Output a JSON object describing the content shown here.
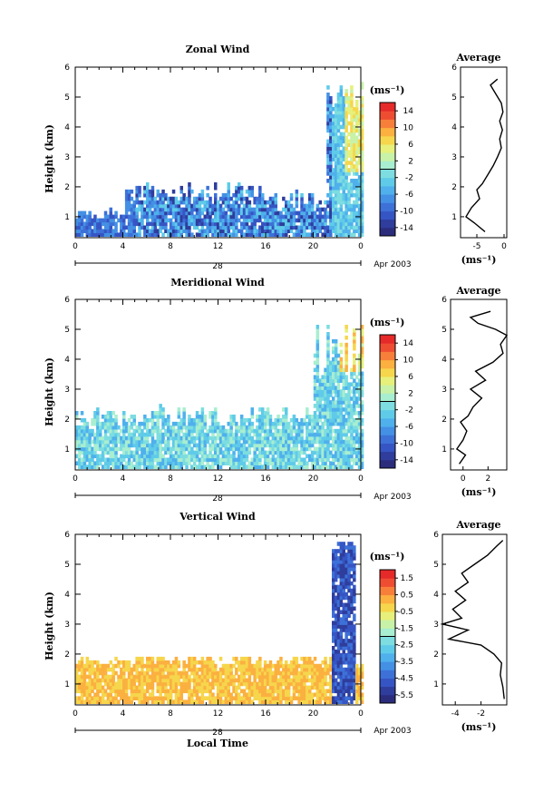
{
  "figure": {
    "date_label": "Apr 2003",
    "day_label": "28",
    "bottom_xlabel": "Local Time",
    "ylabel": "Height (km)",
    "unit_label": "(ms⁻¹)",
    "avg_title": "Average",
    "avg_xunit": "(ms⁻¹)"
  },
  "colors": {
    "scale": [
      "#2b2d7c",
      "#2f3d9c",
      "#3655c4",
      "#3d71d8",
      "#4490e4",
      "#4fb0ec",
      "#5fcbe9",
      "#7ddde0",
      "#a8eed0",
      "#c8f2a8",
      "#e6f07a",
      "#f6d64c",
      "#fbb040",
      "#f77f3a",
      "#ef4d32",
      "#e62a2a"
    ],
    "line": "#000000",
    "axis": "#000000"
  },
  "chart_data": [
    {
      "type": "heatmap",
      "title": "Zonal Wind",
      "xlabel": "",
      "ylabel": "Height (km)",
      "xlim": [
        0,
        24
      ],
      "ylim": [
        0.3,
        6
      ],
      "xticks": [
        "0",
        "4",
        "8",
        "12",
        "16",
        "20",
        "0"
      ],
      "yticks": [
        "1",
        "2",
        "3",
        "4",
        "5",
        "6"
      ],
      "colorbar": {
        "unit": "(ms⁻¹)",
        "ticks": [
          "14",
          "10",
          "6",
          "2",
          "-2",
          "-6",
          "-10",
          "-14"
        ],
        "range": [
          -16,
          16
        ]
      },
      "average_profile": {
        "title": "Average",
        "xunit": "(ms⁻¹)",
        "xlim": [
          -8,
          0.5
        ],
        "xticks": [
          "-5",
          "0"
        ],
        "heights": [
          0.5,
          0.8,
          1.0,
          1.3,
          1.6,
          1.9,
          2.1,
          2.4,
          2.7,
          3.0,
          3.3,
          3.6,
          3.9,
          4.2,
          4.5,
          4.8,
          5.1,
          5.4,
          5.6
        ],
        "values": [
          -3.5,
          -5.5,
          -7.0,
          -6.0,
          -4.5,
          -5.0,
          -4.0,
          -3.0,
          -2.0,
          -1.2,
          -0.5,
          -0.8,
          -0.3,
          -0.8,
          -0.2,
          -0.5,
          -1.5,
          -2.5,
          -1.2
        ]
      }
    },
    {
      "type": "heatmap",
      "title": "Meridional Wind",
      "xlabel": "",
      "ylabel": "Height (km)",
      "xlim": [
        0,
        24
      ],
      "ylim": [
        0.3,
        6
      ],
      "xticks": [
        "0",
        "4",
        "8",
        "12",
        "16",
        "20",
        "0"
      ],
      "yticks": [
        "1",
        "2",
        "3",
        "4",
        "5",
        "6"
      ],
      "colorbar": {
        "unit": "(ms⁻¹)",
        "ticks": [
          "14",
          "10",
          "6",
          "2",
          "-2",
          "-6",
          "-10",
          "-14"
        ],
        "range": [
          -16,
          16
        ]
      },
      "average_profile": {
        "title": "Average",
        "xunit": "(ms⁻¹)",
        "xlim": [
          -1,
          3.5
        ],
        "xticks": [
          "0",
          "2"
        ],
        "heights": [
          0.5,
          0.8,
          1.0,
          1.3,
          1.6,
          1.9,
          2.1,
          2.4,
          2.7,
          3.0,
          3.3,
          3.6,
          3.9,
          4.2,
          4.5,
          4.8,
          5.0,
          5.2,
          5.4,
          5.6
        ],
        "values": [
          -0.3,
          0.2,
          -0.5,
          0.0,
          0.3,
          -0.2,
          0.4,
          0.8,
          1.5,
          0.6,
          1.8,
          1.0,
          2.4,
          3.2,
          3.0,
          3.5,
          2.6,
          1.2,
          0.6,
          2.2
        ]
      }
    },
    {
      "type": "heatmap",
      "title": "Vertical Wind",
      "xlabel": "Local Time",
      "ylabel": "Height (km)",
      "xlim": [
        0,
        24
      ],
      "ylim": [
        0.3,
        6
      ],
      "xticks": [
        "0",
        "4",
        "8",
        "12",
        "16",
        "20",
        "0"
      ],
      "yticks": [
        "1",
        "2",
        "3",
        "4",
        "5",
        "6"
      ],
      "colorbar": {
        "unit": "(ms⁻¹)",
        "ticks": [
          "1.5",
          "0.5",
          "-0.5",
          "-1.5",
          "-2.5",
          "-3.5",
          "-4.5",
          "-5.5"
        ],
        "range": [
          -6,
          2
        ]
      },
      "average_profile": {
        "title": "Average",
        "xunit": "(ms⁻¹)",
        "xlim": [
          -5,
          0
        ],
        "xticks": [
          "-4",
          "-2"
        ],
        "heights": [
          0.5,
          0.9,
          1.3,
          1.7,
          2.0,
          2.3,
          2.5,
          2.8,
          3.0,
          3.2,
          3.5,
          3.8,
          4.1,
          4.4,
          4.7,
          5.0,
          5.3,
          5.6,
          5.8
        ],
        "values": [
          -0.2,
          -0.3,
          -0.5,
          -0.4,
          -1.0,
          -2.0,
          -4.5,
          -3.0,
          -5.0,
          -3.5,
          -4.2,
          -3.2,
          -4.0,
          -3.0,
          -3.5,
          -2.5,
          -1.5,
          -0.8,
          -0.3
        ]
      }
    }
  ]
}
